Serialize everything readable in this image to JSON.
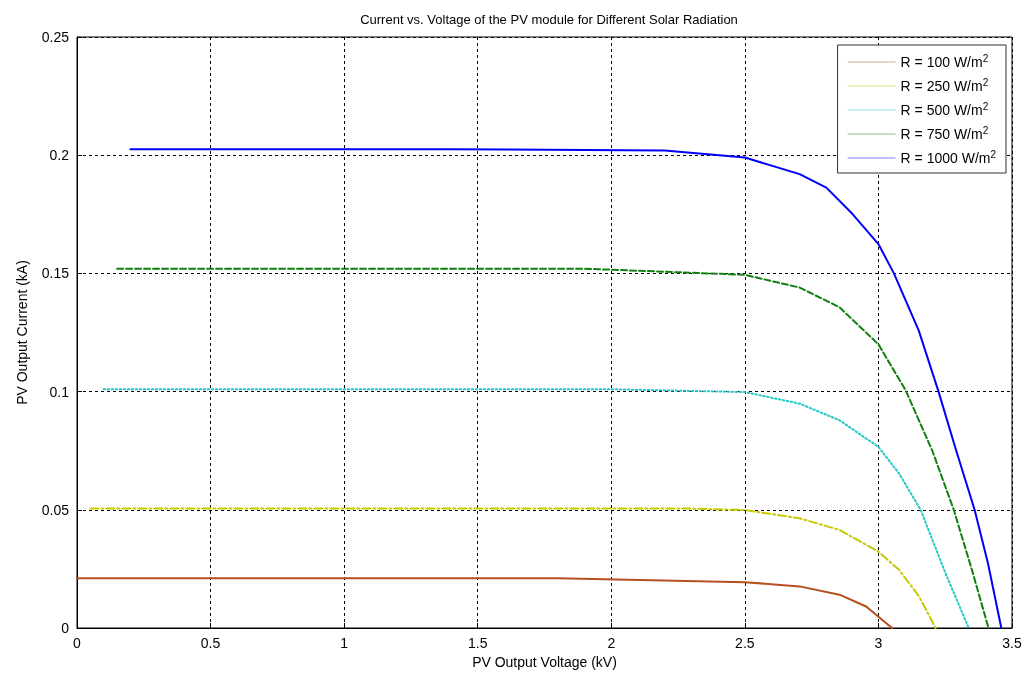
{
  "chart_data": {
    "type": "line",
    "title": "Current vs. Voltage of the PV module for Different Solar Radiation",
    "xlabel": "PV Output Voltage (kV)",
    "ylabel": "PV Output Current (kA)",
    "xlim": [
      0,
      3.5
    ],
    "xticks": [
      0,
      0.5,
      1,
      1.5,
      2,
      2.5,
      3,
      3.5
    ],
    "ylim": [
      0,
      0.25
    ],
    "yticks": [
      0,
      0.05,
      0.1,
      0.15,
      0.2,
      0.25
    ],
    "grid": true,
    "legend": "top right",
    "marker": "none",
    "series": [
      {
        "name": "R = 100 W/m$^{2}$",
        "color": "#b5501e",
        "line_style": "solid",
        "x": [
          0,
          1.8,
          2.5,
          2.705,
          2.854,
          2.954,
          3.051
        ],
        "values": [
          0.021,
          0.021,
          0.0194,
          0.0176,
          0.0141,
          0.0091,
          0
        ]
      },
      {
        "name": "R = 250 W/m$^{2}$",
        "color": "#c8c800",
        "line_style": "dashdot",
        "x": [
          0.05,
          2.3,
          2.5,
          2.705,
          2.854,
          3.0,
          3.077,
          3.152,
          3.214
        ],
        "values": [
          0.0505,
          0.0505,
          0.0499,
          0.0464,
          0.0415,
          0.0323,
          0.0246,
          0.0134,
          0
        ]
      },
      {
        "name": "R = 500 W/m$^{2}$",
        "color": "#20c8c8",
        "line_style": "dotted",
        "x": [
          0.1,
          2.0,
          2.5,
          2.705,
          2.854,
          3.0,
          3.077,
          3.158,
          3.251,
          3.338
        ],
        "values": [
          0.101,
          0.101,
          0.0998,
          0.0949,
          0.0879,
          0.0766,
          0.0654,
          0.05,
          0.0232,
          0
        ]
      },
      {
        "name": "R = 750 W/m$^{2}$",
        "color": "#108010",
        "line_style": "dashed",
        "x": [
          0.15,
          1.9,
          2.5,
          2.705,
          2.854,
          3.0,
          3.102,
          3.201,
          3.282,
          3.35,
          3.412
        ],
        "values": [
          0.152,
          0.152,
          0.1494,
          0.144,
          0.1357,
          0.12,
          0.1005,
          0.0752,
          0.05,
          0.0246,
          0
        ]
      },
      {
        "name": "R = 1000 W/m$^{2}$",
        "color": "#0000ff",
        "line_style": "solid",
        "x": [
          0.2,
          1.4,
          2.2,
          2.5,
          2.705,
          2.805,
          2.904,
          3.0,
          3.058,
          3.151,
          3.225,
          3.287,
          3.36,
          3.41,
          3.46
        ],
        "values": [
          0.2025,
          0.2025,
          0.202,
          0.199,
          0.192,
          0.1863,
          0.175,
          0.1624,
          0.15,
          0.1258,
          0.1,
          0.0766,
          0.05,
          0.0274,
          0
        ]
      }
    ]
  }
}
